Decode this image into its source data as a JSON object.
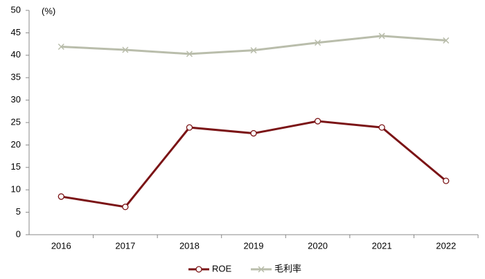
{
  "chart_data": {
    "type": "line",
    "y_label": "(%)",
    "categories": [
      "2016",
      "2017",
      "2018",
      "2019",
      "2020",
      "2021",
      "2022"
    ],
    "series": [
      {
        "name": "ROE",
        "color": "#7b1416",
        "marker": "circle",
        "values": [
          8.5,
          6.2,
          23.9,
          22.6,
          25.3,
          23.9,
          12.0
        ]
      },
      {
        "name": "毛利率",
        "color": "#b9bdab",
        "marker": "x",
        "values": [
          41.9,
          41.2,
          40.3,
          41.1,
          42.8,
          44.3,
          43.3
        ]
      }
    ],
    "ylim": [
      0,
      50
    ],
    "yticks": [
      0,
      5,
      10,
      15,
      20,
      25,
      30,
      35,
      40,
      45,
      50
    ],
    "grid": false,
    "legend": "bottom"
  }
}
